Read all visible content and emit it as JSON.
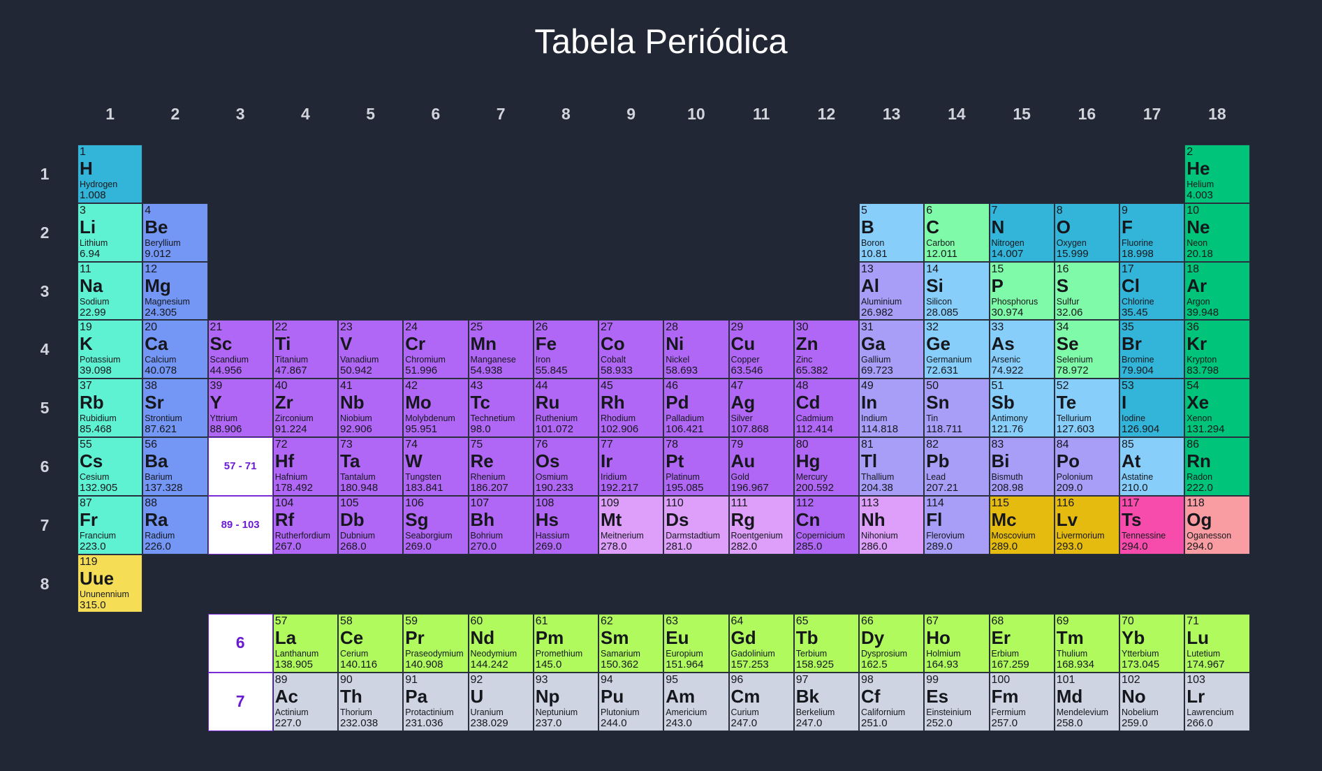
{
  "title": "Tabela Periódica",
  "colors": {
    "background": "#222736",
    "alkali-metal": "#5ef2d2",
    "alkaline-earth": "#7496f5",
    "transition-metal": "#b067f5",
    "post-transition": "#a89ef8",
    "metalloid": "#87cefa",
    "nonmetal": "#7ffaa8",
    "halogen": "#32b5d8",
    "noble-gas": "#00c47a",
    "unknown": "#dd9ffa",
    "lanthanide": "#b0fa5e",
    "actinide": "#cfd4e2",
    "predicted-gold": "#e5bb10",
    "predicted-pink": "#f74cac",
    "predicted-salmon": "#f99da3",
    "predicted-yellow": "#f5de55"
  },
  "groups": [
    "1",
    "2",
    "3",
    "4",
    "5",
    "6",
    "7",
    "8",
    "9",
    "10",
    "11",
    "12",
    "13",
    "14",
    "15",
    "16",
    "17",
    "18"
  ],
  "periods": [
    "1",
    "2",
    "3",
    "4",
    "5",
    "6",
    "7",
    "8"
  ],
  "placeholders": [
    {
      "text": "57 - 71",
      "col": 3,
      "row": 6,
      "size": "small"
    },
    {
      "text": "89 - 103",
      "col": 3,
      "row": 7,
      "size": "small"
    },
    {
      "text": "6",
      "col": 3,
      "row": 9,
      "size": "big"
    },
    {
      "text": "7",
      "col": 3,
      "row": 10,
      "size": "big"
    }
  ],
  "elements": [
    {
      "n": "1",
      "s": "H",
      "name": "Hydrogen",
      "m": "1.008",
      "col": 1,
      "row": 1,
      "cat": "halogen"
    },
    {
      "n": "2",
      "s": "He",
      "name": "Helium",
      "m": "4.003",
      "col": 18,
      "row": 1,
      "cat": "noble-gas"
    },
    {
      "n": "3",
      "s": "Li",
      "name": "Lithium",
      "m": "6.94",
      "col": 1,
      "row": 2,
      "cat": "alkali-metal"
    },
    {
      "n": "4",
      "s": "Be",
      "name": "Beryllium",
      "m": "9.012",
      "col": 2,
      "row": 2,
      "cat": "alkaline-earth"
    },
    {
      "n": "5",
      "s": "B",
      "name": "Boron",
      "m": "10.81",
      "col": 13,
      "row": 2,
      "cat": "metalloid"
    },
    {
      "n": "6",
      "s": "C",
      "name": "Carbon",
      "m": "12.011",
      "col": 14,
      "row": 2,
      "cat": "nonmetal"
    },
    {
      "n": "7",
      "s": "N",
      "name": "Nitrogen",
      "m": "14.007",
      "col": 15,
      "row": 2,
      "cat": "halogen"
    },
    {
      "n": "8",
      "s": "O",
      "name": "Oxygen",
      "m": "15.999",
      "col": 16,
      "row": 2,
      "cat": "halogen"
    },
    {
      "n": "9",
      "s": "F",
      "name": "Fluorine",
      "m": "18.998",
      "col": 17,
      "row": 2,
      "cat": "halogen"
    },
    {
      "n": "10",
      "s": "Ne",
      "name": "Neon",
      "m": "20.18",
      "col": 18,
      "row": 2,
      "cat": "noble-gas"
    },
    {
      "n": "11",
      "s": "Na",
      "name": "Sodium",
      "m": "22.99",
      "col": 1,
      "row": 3,
      "cat": "alkali-metal"
    },
    {
      "n": "12",
      "s": "Mg",
      "name": "Magnesium",
      "m": "24.305",
      "col": 2,
      "row": 3,
      "cat": "alkaline-earth"
    },
    {
      "n": "13",
      "s": "Al",
      "name": "Aluminium",
      "m": "26.982",
      "col": 13,
      "row": 3,
      "cat": "post-transition"
    },
    {
      "n": "14",
      "s": "Si",
      "name": "Silicon",
      "m": "28.085",
      "col": 14,
      "row": 3,
      "cat": "metalloid"
    },
    {
      "n": "15",
      "s": "P",
      "name": "Phosphorus",
      "m": "30.974",
      "col": 15,
      "row": 3,
      "cat": "nonmetal"
    },
    {
      "n": "16",
      "s": "S",
      "name": "Sulfur",
      "m": "32.06",
      "col": 16,
      "row": 3,
      "cat": "nonmetal"
    },
    {
      "n": "17",
      "s": "Cl",
      "name": "Chlorine",
      "m": "35.45",
      "col": 17,
      "row": 3,
      "cat": "halogen"
    },
    {
      "n": "18",
      "s": "Ar",
      "name": "Argon",
      "m": "39.948",
      "col": 18,
      "row": 3,
      "cat": "noble-gas"
    },
    {
      "n": "19",
      "s": "K",
      "name": "Potassium",
      "m": "39.098",
      "col": 1,
      "row": 4,
      "cat": "alkali-metal"
    },
    {
      "n": "20",
      "s": "Ca",
      "name": "Calcium",
      "m": "40.078",
      "col": 2,
      "row": 4,
      "cat": "alkaline-earth"
    },
    {
      "n": "21",
      "s": "Sc",
      "name": "Scandium",
      "m": "44.956",
      "col": 3,
      "row": 4,
      "cat": "transition-metal"
    },
    {
      "n": "22",
      "s": "Ti",
      "name": "Titanium",
      "m": "47.867",
      "col": 4,
      "row": 4,
      "cat": "transition-metal"
    },
    {
      "n": "23",
      "s": "V",
      "name": "Vanadium",
      "m": "50.942",
      "col": 5,
      "row": 4,
      "cat": "transition-metal"
    },
    {
      "n": "24",
      "s": "Cr",
      "name": "Chromium",
      "m": "51.996",
      "col": 6,
      "row": 4,
      "cat": "transition-metal"
    },
    {
      "n": "25",
      "s": "Mn",
      "name": "Manganese",
      "m": "54.938",
      "col": 7,
      "row": 4,
      "cat": "transition-metal"
    },
    {
      "n": "26",
      "s": "Fe",
      "name": "Iron",
      "m": "55.845",
      "col": 8,
      "row": 4,
      "cat": "transition-metal"
    },
    {
      "n": "27",
      "s": "Co",
      "name": "Cobalt",
      "m": "58.933",
      "col": 9,
      "row": 4,
      "cat": "transition-metal"
    },
    {
      "n": "28",
      "s": "Ni",
      "name": "Nickel",
      "m": "58.693",
      "col": 10,
      "row": 4,
      "cat": "transition-metal"
    },
    {
      "n": "29",
      "s": "Cu",
      "name": "Copper",
      "m": "63.546",
      "col": 11,
      "row": 4,
      "cat": "transition-metal"
    },
    {
      "n": "30",
      "s": "Zn",
      "name": "Zinc",
      "m": "65.382",
      "col": 12,
      "row": 4,
      "cat": "transition-metal"
    },
    {
      "n": "31",
      "s": "Ga",
      "name": "Gallium",
      "m": "69.723",
      "col": 13,
      "row": 4,
      "cat": "post-transition"
    },
    {
      "n": "32",
      "s": "Ge",
      "name": "Germanium",
      "m": "72.631",
      "col": 14,
      "row": 4,
      "cat": "metalloid"
    },
    {
      "n": "33",
      "s": "As",
      "name": "Arsenic",
      "m": "74.922",
      "col": 15,
      "row": 4,
      "cat": "metalloid"
    },
    {
      "n": "34",
      "s": "Se",
      "name": "Selenium",
      "m": "78.972",
      "col": 16,
      "row": 4,
      "cat": "nonmetal"
    },
    {
      "n": "35",
      "s": "Br",
      "name": "Bromine",
      "m": "79.904",
      "col": 17,
      "row": 4,
      "cat": "halogen"
    },
    {
      "n": "36",
      "s": "Kr",
      "name": "Krypton",
      "m": "83.798",
      "col": 18,
      "row": 4,
      "cat": "noble-gas"
    },
    {
      "n": "37",
      "s": "Rb",
      "name": "Rubidium",
      "m": "85.468",
      "col": 1,
      "row": 5,
      "cat": "alkali-metal"
    },
    {
      "n": "38",
      "s": "Sr",
      "name": "Strontium",
      "m": "87.621",
      "col": 2,
      "row": 5,
      "cat": "alkaline-earth"
    },
    {
      "n": "39",
      "s": "Y",
      "name": "Yttrium",
      "m": "88.906",
      "col": 3,
      "row": 5,
      "cat": "transition-metal"
    },
    {
      "n": "40",
      "s": "Zr",
      "name": "Zirconium",
      "m": "91.224",
      "col": 4,
      "row": 5,
      "cat": "transition-metal"
    },
    {
      "n": "41",
      "s": "Nb",
      "name": "Niobium",
      "m": "92.906",
      "col": 5,
      "row": 5,
      "cat": "transition-metal"
    },
    {
      "n": "42",
      "s": "Mo",
      "name": "Molybdenum",
      "m": "95.951",
      "col": 6,
      "row": 5,
      "cat": "transition-metal"
    },
    {
      "n": "43",
      "s": "Tc",
      "name": "Technetium",
      "m": "98.0",
      "col": 7,
      "row": 5,
      "cat": "transition-metal"
    },
    {
      "n": "44",
      "s": "Ru",
      "name": "Ruthenium",
      "m": "101.072",
      "col": 8,
      "row": 5,
      "cat": "transition-metal"
    },
    {
      "n": "45",
      "s": "Rh",
      "name": "Rhodium",
      "m": "102.906",
      "col": 9,
      "row": 5,
      "cat": "transition-metal"
    },
    {
      "n": "46",
      "s": "Pd",
      "name": "Palladium",
      "m": "106.421",
      "col": 10,
      "row": 5,
      "cat": "transition-metal"
    },
    {
      "n": "47",
      "s": "Ag",
      "name": "Silver",
      "m": "107.868",
      "col": 11,
      "row": 5,
      "cat": "transition-metal"
    },
    {
      "n": "48",
      "s": "Cd",
      "name": "Cadmium",
      "m": "112.414",
      "col": 12,
      "row": 5,
      "cat": "transition-metal"
    },
    {
      "n": "49",
      "s": "In",
      "name": "Indium",
      "m": "114.818",
      "col": 13,
      "row": 5,
      "cat": "post-transition"
    },
    {
      "n": "50",
      "s": "Sn",
      "name": "Tin",
      "m": "118.711",
      "col": 14,
      "row": 5,
      "cat": "post-transition"
    },
    {
      "n": "51",
      "s": "Sb",
      "name": "Antimony",
      "m": "121.76",
      "col": 15,
      "row": 5,
      "cat": "metalloid"
    },
    {
      "n": "52",
      "s": "Te",
      "name": "Tellurium",
      "m": "127.603",
      "col": 16,
      "row": 5,
      "cat": "metalloid"
    },
    {
      "n": "53",
      "s": "I",
      "name": "Iodine",
      "m": "126.904",
      "col": 17,
      "row": 5,
      "cat": "halogen"
    },
    {
      "n": "54",
      "s": "Xe",
      "name": "Xenon",
      "m": "131.294",
      "col": 18,
      "row": 5,
      "cat": "noble-gas"
    },
    {
      "n": "55",
      "s": "Cs",
      "name": "Cesium",
      "m": "132.905",
      "col": 1,
      "row": 6,
      "cat": "alkali-metal"
    },
    {
      "n": "56",
      "s": "Ba",
      "name": "Barium",
      "m": "137.328",
      "col": 2,
      "row": 6,
      "cat": "alkaline-earth"
    },
    {
      "n": "72",
      "s": "Hf",
      "name": "Hafnium",
      "m": "178.492",
      "col": 4,
      "row": 6,
      "cat": "transition-metal"
    },
    {
      "n": "73",
      "s": "Ta",
      "name": "Tantalum",
      "m": "180.948",
      "col": 5,
      "row": 6,
      "cat": "transition-metal"
    },
    {
      "n": "74",
      "s": "W",
      "name": "Tungsten",
      "m": "183.841",
      "col": 6,
      "row": 6,
      "cat": "transition-metal"
    },
    {
      "n": "75",
      "s": "Re",
      "name": "Rhenium",
      "m": "186.207",
      "col": 7,
      "row": 6,
      "cat": "transition-metal"
    },
    {
      "n": "76",
      "s": "Os",
      "name": "Osmium",
      "m": "190.233",
      "col": 8,
      "row": 6,
      "cat": "transition-metal"
    },
    {
      "n": "77",
      "s": "Ir",
      "name": "Iridium",
      "m": "192.217",
      "col": 9,
      "row": 6,
      "cat": "transition-metal"
    },
    {
      "n": "78",
      "s": "Pt",
      "name": "Platinum",
      "m": "195.085",
      "col": 10,
      "row": 6,
      "cat": "transition-metal"
    },
    {
      "n": "79",
      "s": "Au",
      "name": "Gold",
      "m": "196.967",
      "col": 11,
      "row": 6,
      "cat": "transition-metal"
    },
    {
      "n": "80",
      "s": "Hg",
      "name": "Mercury",
      "m": "200.592",
      "col": 12,
      "row": 6,
      "cat": "transition-metal"
    },
    {
      "n": "81",
      "s": "Tl",
      "name": "Thallium",
      "m": "204.38",
      "col": 13,
      "row": 6,
      "cat": "post-transition"
    },
    {
      "n": "82",
      "s": "Pb",
      "name": "Lead",
      "m": "207.21",
      "col": 14,
      "row": 6,
      "cat": "post-transition"
    },
    {
      "n": "83",
      "s": "Bi",
      "name": "Bismuth",
      "m": "208.98",
      "col": 15,
      "row": 6,
      "cat": "post-transition"
    },
    {
      "n": "84",
      "s": "Po",
      "name": "Polonium",
      "m": "209.0",
      "col": 16,
      "row": 6,
      "cat": "post-transition"
    },
    {
      "n": "85",
      "s": "At",
      "name": "Astatine",
      "m": "210.0",
      "col": 17,
      "row": 6,
      "cat": "metalloid"
    },
    {
      "n": "86",
      "s": "Rn",
      "name": "Radon",
      "m": "222.0",
      "col": 18,
      "row": 6,
      "cat": "noble-gas"
    },
    {
      "n": "87",
      "s": "Fr",
      "name": "Francium",
      "m": "223.0",
      "col": 1,
      "row": 7,
      "cat": "alkali-metal"
    },
    {
      "n": "88",
      "s": "Ra",
      "name": "Radium",
      "m": "226.0",
      "col": 2,
      "row": 7,
      "cat": "alkaline-earth"
    },
    {
      "n": "104",
      "s": "Rf",
      "name": "Rutherfordium",
      "m": "267.0",
      "col": 4,
      "row": 7,
      "cat": "transition-metal"
    },
    {
      "n": "105",
      "s": "Db",
      "name": "Dubnium",
      "m": "268.0",
      "col": 5,
      "row": 7,
      "cat": "transition-metal"
    },
    {
      "n": "106",
      "s": "Sg",
      "name": "Seaborgium",
      "m": "269.0",
      "col": 6,
      "row": 7,
      "cat": "transition-metal"
    },
    {
      "n": "107",
      "s": "Bh",
      "name": "Bohrium",
      "m": "270.0",
      "col": 7,
      "row": 7,
      "cat": "transition-metal"
    },
    {
      "n": "108",
      "s": "Hs",
      "name": "Hassium",
      "m": "269.0",
      "col": 8,
      "row": 7,
      "cat": "transition-metal"
    },
    {
      "n": "109",
      "s": "Mt",
      "name": "Meitnerium",
      "m": "278.0",
      "col": 9,
      "row": 7,
      "cat": "unknown"
    },
    {
      "n": "110",
      "s": "Ds",
      "name": "Darmstadtium",
      "m": "281.0",
      "col": 10,
      "row": 7,
      "cat": "unknown"
    },
    {
      "n": "111",
      "s": "Rg",
      "name": "Roentgenium",
      "m": "282.0",
      "col": 11,
      "row": 7,
      "cat": "unknown"
    },
    {
      "n": "112",
      "s": "Cn",
      "name": "Copernicium",
      "m": "285.0",
      "col": 12,
      "row": 7,
      "cat": "transition-metal"
    },
    {
      "n": "113",
      "s": "Nh",
      "name": "Nihonium",
      "m": "286.0",
      "col": 13,
      "row": 7,
      "cat": "unknown"
    },
    {
      "n": "114",
      "s": "Fl",
      "name": "Flerovium",
      "m": "289.0",
      "col": 14,
      "row": 7,
      "cat": "post-transition"
    },
    {
      "n": "115",
      "s": "Mc",
      "name": "Moscovium",
      "m": "289.0",
      "col": 15,
      "row": 7,
      "cat": "predicted-gold"
    },
    {
      "n": "116",
      "s": "Lv",
      "name": "Livermorium",
      "m": "293.0",
      "col": 16,
      "row": 7,
      "cat": "predicted-gold"
    },
    {
      "n": "117",
      "s": "Ts",
      "name": "Tennessine",
      "m": "294.0",
      "col": 17,
      "row": 7,
      "cat": "predicted-pink"
    },
    {
      "n": "118",
      "s": "Og",
      "name": "Oganesson",
      "m": "294.0",
      "col": 18,
      "row": 7,
      "cat": "predicted-salmon"
    },
    {
      "n": "119",
      "s": "Uue",
      "name": "Ununennium",
      "m": "315.0",
      "col": 1,
      "row": 8,
      "cat": "predicted-yellow"
    },
    {
      "n": "57",
      "s": "La",
      "name": "Lanthanum",
      "m": "138.905",
      "col": 4,
      "row": 9,
      "cat": "lanthanide"
    },
    {
      "n": "58",
      "s": "Ce",
      "name": "Cerium",
      "m": "140.116",
      "col": 5,
      "row": 9,
      "cat": "lanthanide"
    },
    {
      "n": "59",
      "s": "Pr",
      "name": "Praseodymium",
      "m": "140.908",
      "col": 6,
      "row": 9,
      "cat": "lanthanide"
    },
    {
      "n": "60",
      "s": "Nd",
      "name": "Neodymium",
      "m": "144.242",
      "col": 7,
      "row": 9,
      "cat": "lanthanide"
    },
    {
      "n": "61",
      "s": "Pm",
      "name": "Promethium",
      "m": "145.0",
      "col": 8,
      "row": 9,
      "cat": "lanthanide"
    },
    {
      "n": "62",
      "s": "Sm",
      "name": "Samarium",
      "m": "150.362",
      "col": 9,
      "row": 9,
      "cat": "lanthanide"
    },
    {
      "n": "63",
      "s": "Eu",
      "name": "Europium",
      "m": "151.964",
      "col": 10,
      "row": 9,
      "cat": "lanthanide"
    },
    {
      "n": "64",
      "s": "Gd",
      "name": "Gadolinium",
      "m": "157.253",
      "col": 11,
      "row": 9,
      "cat": "lanthanide"
    },
    {
      "n": "65",
      "s": "Tb",
      "name": "Terbium",
      "m": "158.925",
      "col": 12,
      "row": 9,
      "cat": "lanthanide"
    },
    {
      "n": "66",
      "s": "Dy",
      "name": "Dysprosium",
      "m": "162.5",
      "col": 13,
      "row": 9,
      "cat": "lanthanide"
    },
    {
      "n": "67",
      "s": "Ho",
      "name": "Holmium",
      "m": "164.93",
      "col": 14,
      "row": 9,
      "cat": "lanthanide"
    },
    {
      "n": "68",
      "s": "Er",
      "name": "Erbium",
      "m": "167.259",
      "col": 15,
      "row": 9,
      "cat": "lanthanide"
    },
    {
      "n": "69",
      "s": "Tm",
      "name": "Thulium",
      "m": "168.934",
      "col": 16,
      "row": 9,
      "cat": "lanthanide"
    },
    {
      "n": "70",
      "s": "Yb",
      "name": "Ytterbium",
      "m": "173.045",
      "col": 17,
      "row": 9,
      "cat": "lanthanide"
    },
    {
      "n": "71",
      "s": "Lu",
      "name": "Lutetium",
      "m": "174.967",
      "col": 18,
      "row": 9,
      "cat": "lanthanide"
    },
    {
      "n": "89",
      "s": "Ac",
      "name": "Actinium",
      "m": "227.0",
      "col": 4,
      "row": 10,
      "cat": "actinide"
    },
    {
      "n": "90",
      "s": "Th",
      "name": "Thorium",
      "m": "232.038",
      "col": 5,
      "row": 10,
      "cat": "actinide"
    },
    {
      "n": "91",
      "s": "Pa",
      "name": "Protactinium",
      "m": "231.036",
      "col": 6,
      "row": 10,
      "cat": "actinide"
    },
    {
      "n": "92",
      "s": "U",
      "name": "Uranium",
      "m": "238.029",
      "col": 7,
      "row": 10,
      "cat": "actinide"
    },
    {
      "n": "93",
      "s": "Np",
      "name": "Neptunium",
      "m": "237.0",
      "col": 8,
      "row": 10,
      "cat": "actinide"
    },
    {
      "n": "94",
      "s": "Pu",
      "name": "Plutonium",
      "m": "244.0",
      "col": 9,
      "row": 10,
      "cat": "actinide"
    },
    {
      "n": "95",
      "s": "Am",
      "name": "Americium",
      "m": "243.0",
      "col": 10,
      "row": 10,
      "cat": "actinide"
    },
    {
      "n": "96",
      "s": "Cm",
      "name": "Curium",
      "m": "247.0",
      "col": 11,
      "row": 10,
      "cat": "actinide"
    },
    {
      "n": "97",
      "s": "Bk",
      "name": "Berkelium",
      "m": "247.0",
      "col": 12,
      "row": 10,
      "cat": "actinide"
    },
    {
      "n": "98",
      "s": "Cf",
      "name": "Californium",
      "m": "251.0",
      "col": 13,
      "row": 10,
      "cat": "actinide"
    },
    {
      "n": "99",
      "s": "Es",
      "name": "Einsteinium",
      "m": "252.0",
      "col": 14,
      "row": 10,
      "cat": "actinide"
    },
    {
      "n": "100",
      "s": "Fm",
      "name": "Fermium",
      "m": "257.0",
      "col": 15,
      "row": 10,
      "cat": "actinide"
    },
    {
      "n": "101",
      "s": "Md",
      "name": "Mendelevium",
      "m": "258.0",
      "col": 16,
      "row": 10,
      "cat": "actinide"
    },
    {
      "n": "102",
      "s": "No",
      "name": "Nobelium",
      "m": "259.0",
      "col": 17,
      "row": 10,
      "cat": "actinide"
    },
    {
      "n": "103",
      "s": "Lr",
      "name": "Lawrencium",
      "m": "266.0",
      "col": 18,
      "row": 10,
      "cat": "actinide"
    }
  ]
}
